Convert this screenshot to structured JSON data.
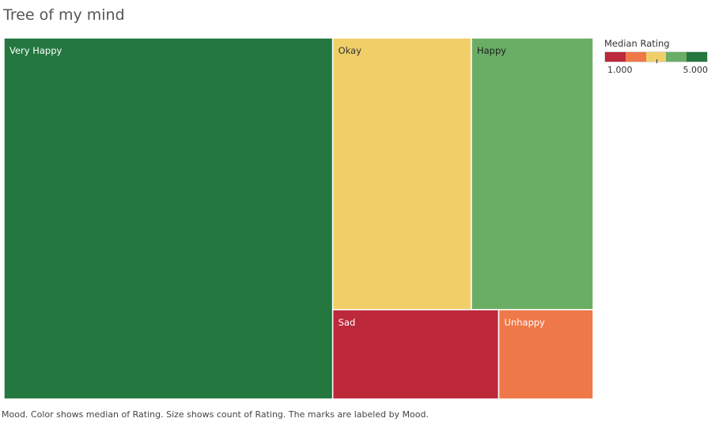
{
  "chart_data": {
    "type": "treemap",
    "title": "Tree of my mind",
    "caption": "Mood.  Color shows median of Rating.  Size shows count of Rating.  The marks are labeled by Mood.",
    "items": [
      {
        "label": "Very Happy",
        "count": 52,
        "median_rating": 5,
        "color": "#23773f"
      },
      {
        "label": "Okay",
        "count": 16.5,
        "median_rating": 3,
        "color": "#f0cf69"
      },
      {
        "label": "Happy",
        "count": 14.5,
        "median_rating": 4,
        "color": "#6aae65"
      },
      {
        "label": "Sad",
        "count": 6.5,
        "median_rating": 1,
        "color": "#bd283b"
      },
      {
        "label": "Unhappy",
        "count": 3.7,
        "median_rating": 2,
        "color": "#ef7849"
      }
    ],
    "legend": {
      "title": "Median Rating",
      "min_label": "1.000",
      "max_label": "5.000",
      "min": 1,
      "max": 5,
      "median_marker": 3,
      "colors": [
        "#bd283b",
        "#ef7849",
        "#f0cf69",
        "#6aae65",
        "#23773f"
      ]
    }
  }
}
